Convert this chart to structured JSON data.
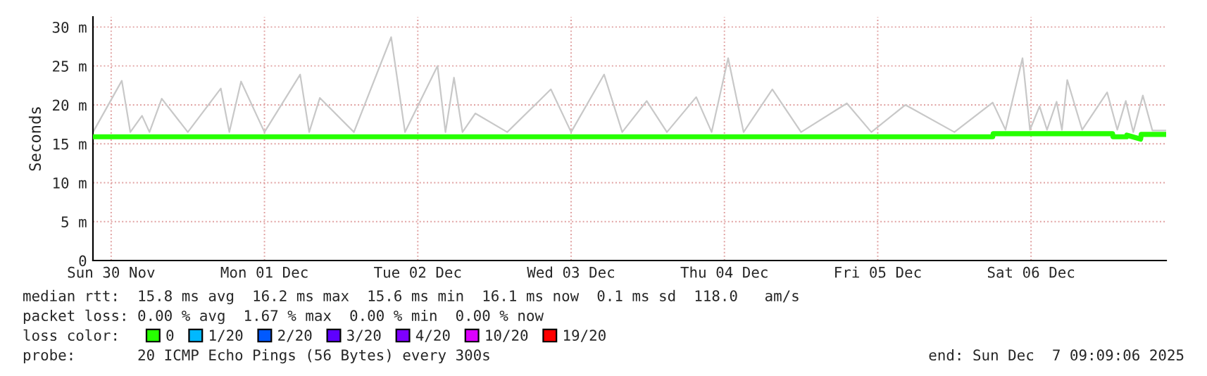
{
  "chart_data": {
    "type": "line",
    "ylabel": "Seconds",
    "legend_title": "loss color:",
    "legend": "bottom",
    "grid": true,
    "xlim": [
      "2025-11-30T09:09",
      "2025-12-07T09:09"
    ],
    "xticks": [
      {
        "value": "2025-11-30T12:00",
        "label": "Sun 30 Nov"
      },
      {
        "value": "2025-12-01T12:00",
        "label": "Mon 01 Dec"
      },
      {
        "value": "2025-12-02T12:00",
        "label": "Tue 02 Dec"
      },
      {
        "value": "2025-12-03T12:00",
        "label": "Wed 03 Dec"
      },
      {
        "value": "2025-12-04T12:00",
        "label": "Thu 04 Dec"
      },
      {
        "value": "2025-12-05T12:00",
        "label": "Fri 05 Dec"
      },
      {
        "value": "2025-12-06T12:00",
        "label": "Sat 06 Dec"
      }
    ],
    "ylim": [
      0,
      31.3
    ],
    "yticks": [
      0,
      {
        "value": 5,
        "label": "5 m"
      },
      {
        "value": 10,
        "label": "10 m"
      },
      {
        "value": 15,
        "label": "15 m"
      },
      {
        "value": 20,
        "label": "20 m"
      },
      {
        "value": 25,
        "label": "25 m"
      },
      {
        "value": 30,
        "label": "30 m"
      }
    ],
    "series": [
      {
        "color": "#c8c8c8",
        "x": [
          "2025-11-30T09:10",
          "2025-11-30T13:40",
          "2025-11-30T15:00",
          "2025-11-30T16:50",
          "2025-11-30T18:00",
          "2025-11-30T19:55",
          "2025-12-01T00:00",
          "2025-12-01T05:10",
          "2025-12-01T06:30",
          "2025-12-01T08:20",
          "2025-12-01T12:00",
          "2025-12-01T17:35",
          "2025-12-01T19:00",
          "2025-12-01T20:40",
          "2025-12-02T02:00",
          "2025-12-02T07:50",
          "2025-12-02T10:00",
          "2025-12-02T15:05",
          "2025-12-02T16:20",
          "2025-12-02T17:40",
          "2025-12-02T19:00",
          "2025-12-02T21:00",
          "2025-12-03T02:00",
          "2025-12-03T08:50",
          "2025-12-03T12:00",
          "2025-12-03T17:10",
          "2025-12-03T20:00",
          "2025-12-03T23:50",
          "2025-12-04T03:00",
          "2025-12-04T07:35",
          "2025-12-04T10:00",
          "2025-12-04T12:35",
          "2025-12-04T15:00",
          "2025-12-04T19:30",
          "2025-12-05T00:00",
          "2025-12-05T07:10",
          "2025-12-05T11:00",
          "2025-12-05T16:20",
          "2025-12-06T00:00",
          "2025-12-06T06:00",
          "2025-12-06T08:00",
          "2025-12-06T10:40",
          "2025-12-06T11:50",
          "2025-12-06T13:20",
          "2025-12-06T14:30",
          "2025-12-06T16:00",
          "2025-12-06T16:50",
          "2025-12-06T17:40",
          "2025-12-06T20:00",
          "2025-12-06T23:55",
          "2025-12-07T01:30",
          "2025-12-07T02:50",
          "2025-12-07T04:00",
          "2025-12-07T05:30",
          "2025-12-07T07:00",
          "2025-12-07T09:09"
        ],
        "values": [
          16.5,
          23.1,
          16.5,
          18.6,
          16.5,
          20.8,
          16.5,
          22.1,
          16.5,
          23.0,
          16.5,
          23.9,
          16.5,
          20.9,
          16.5,
          28.7,
          16.5,
          25.0,
          16.5,
          23.5,
          16.5,
          18.9,
          16.5,
          22.0,
          16.5,
          23.9,
          16.5,
          20.5,
          16.5,
          21.0,
          16.5,
          26.0,
          16.5,
          22.0,
          16.5,
          20.2,
          16.5,
          20.0,
          16.5,
          20.3,
          16.8,
          26.0,
          16.8,
          19.8,
          16.8,
          20.4,
          16.8,
          23.2,
          16.8,
          21.6,
          16.8,
          20.5,
          16.5,
          21.2,
          16.7,
          16.7
        ]
      },
      {
        "name": "0",
        "color": "#26ff00",
        "x": [
          "2025-11-30T09:09",
          "2025-12-06T06:00",
          "2025-12-06T06:05",
          "2025-12-07T00:45",
          "2025-12-07T00:50",
          "2025-12-07T02:57",
          "2025-12-07T03:00",
          "2025-12-07T05:09",
          "2025-12-07T05:15",
          "2025-12-07T09:09"
        ],
        "values": [
          15.9,
          15.9,
          16.3,
          16.3,
          15.9,
          15.9,
          16.1,
          15.6,
          16.2,
          16.2
        ]
      },
      {
        "name": "1/20",
        "color": "#00b8ff"
      },
      {
        "name": "2/20",
        "color": "#0059ff"
      },
      {
        "name": "3/20",
        "color": "#5e00ff"
      },
      {
        "name": "4/20",
        "color": "#7e00ff"
      },
      {
        "name": "10/20",
        "color": "#dd00ff"
      },
      {
        "name": "19/20",
        "color": "#ff0000"
      }
    ],
    "annotations": [
      "median rtt:  15.8 ms avg  16.2 ms max  15.6 ms min  16.1 ms now  0.1 ms sd  118.0   am/s",
      "packet loss: 0.00 % avg  1.67 % max  0.00 % min  0.00 % now",
      "probe:       20 ICMP Echo Pings (56 Bytes) every 300s",
      "end: Sun Dec  7 09:09:06 2025"
    ]
  }
}
